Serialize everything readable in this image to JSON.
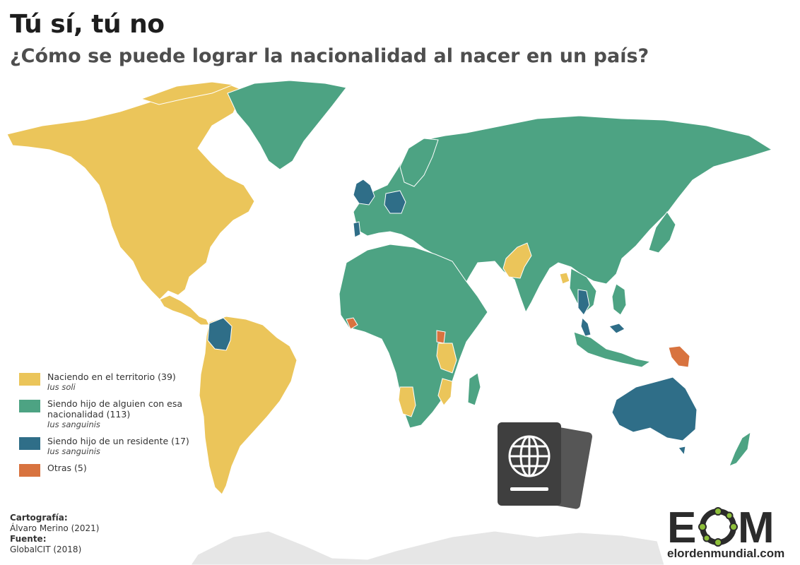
{
  "header": {
    "title": "Tú sí, tú no",
    "subtitle": "¿Cómo se puede lograr la nacionalidad al nacer en un país?"
  },
  "colors": {
    "ius_soli": "#EBC55A",
    "ius_sanguinis": "#4DA383",
    "resident": "#2F6E88",
    "other": "#D8733F",
    "background": "#FFFFFF",
    "antarctica": "#E6E6E6",
    "border": "#FFFFFF"
  },
  "legend": {
    "items": [
      {
        "label": "Naciendo en el territorio (39)",
        "sublabel": "Ius soli",
        "color": "#EBC55A"
      },
      {
        "label": "Siendo hijo de alguien con esa nacionalidad (113)",
        "sublabel": "Ius sanguinis",
        "color": "#4DA383"
      },
      {
        "label": "Siendo hijo de un residente (17)",
        "sublabel": "Ius sanguinis",
        "color": "#2F6E88"
      },
      {
        "label": "Otras (5)",
        "sublabel": "",
        "color": "#D8733F"
      }
    ]
  },
  "credits": {
    "cartography_label": "Cartografía:",
    "cartography_value": "Álvaro Merino (2021)",
    "source_label": "Fuente:",
    "source_value": "GlobalCIT (2018)"
  },
  "logo": {
    "letters": "EOM",
    "domain": "elordenmundial.com"
  },
  "icons": [
    "passport-icon",
    "globe-icon",
    "eom-logo"
  ]
}
